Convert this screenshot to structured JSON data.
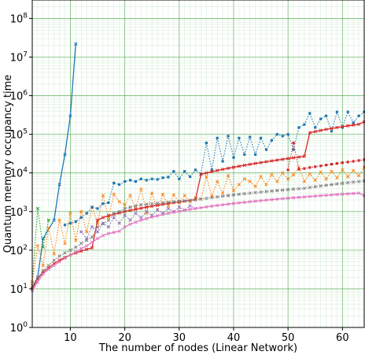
{
  "chart_data": {
    "type": "line",
    "title": "",
    "xlabel": "The number of nodes (Linear Network)",
    "ylabel": "Quantum memory occupancy time",
    "xlim": [
      3,
      64
    ],
    "ylim": [
      1,
      300000000
    ],
    "yscale": "log",
    "grid": "major and minor, green",
    "xticks": [
      10,
      20,
      30,
      40,
      50,
      60
    ],
    "xtick_labels": [
      "10",
      "20",
      "30",
      "40",
      "50",
      "60"
    ],
    "yticks": [
      1,
      10,
      100,
      1000,
      10000,
      100000,
      1000000,
      10000000,
      100000000
    ],
    "ytick_labels": [
      "10^0",
      "10^1",
      "10^2",
      "10^3",
      "10^4",
      "10^5",
      "10^6",
      "10^7",
      "10^8"
    ],
    "series": [
      {
        "color": "#1f77b4",
        "style": "solid",
        "marker": "x",
        "x": [
          3,
          4,
          5,
          7,
          8,
          9,
          10,
          11
        ],
        "y": [
          10,
          20,
          200,
          600,
          5000,
          30000,
          300000,
          22000000
        ]
      },
      {
        "color": "#2ca02c",
        "style": "dotted",
        "marker": "x",
        "x": [
          3,
          4,
          5,
          6
        ],
        "y": [
          15,
          1200,
          120,
          600
        ]
      },
      {
        "color": "#ff7f0e",
        "style": "dotted",
        "marker": "x",
        "x": [
          3,
          4,
          5,
          6,
          7,
          8,
          9,
          10,
          11,
          12,
          13,
          14,
          15,
          16,
          17,
          18,
          19,
          20,
          21,
          22,
          23,
          24,
          25,
          26,
          27,
          28,
          29,
          30,
          31,
          32,
          33,
          34,
          35,
          36,
          37,
          38,
          39,
          40,
          41,
          42,
          43,
          44,
          45,
          46,
          47,
          48,
          49,
          50,
          51,
          52,
          53,
          54,
          55,
          56,
          57,
          58,
          59,
          60,
          61,
          62,
          63,
          64
        ],
        "y": [
          15,
          130,
          40,
          380,
          80,
          600,
          150,
          900,
          180,
          1000,
          300,
          1300,
          500,
          2600,
          700,
          2800,
          1800,
          1500,
          2600,
          1200,
          3800,
          900,
          3000,
          1100,
          2800,
          1400,
          2700,
          1700,
          2600,
          1800,
          2300,
          2100,
          8000,
          2500,
          6000,
          3000,
          8500,
          3500,
          5000,
          7000,
          6000,
          4500,
          8000,
          5000,
          9000,
          6000,
          10000,
          7000,
          9000,
          14000,
          6000,
          9500,
          6500,
          10500,
          7000,
          11000,
          7500,
          12000,
          8000,
          11500,
          8500,
          14000
        ]
      },
      {
        "color": "#1f77b4",
        "style": "dotted",
        "marker": "s",
        "x": [
          9,
          10,
          11,
          12,
          13,
          14,
          15,
          16,
          17,
          18,
          19,
          20,
          21,
          22,
          23,
          24,
          25,
          26,
          27,
          28,
          29,
          30,
          31,
          32,
          33,
          34,
          35,
          36,
          37,
          38,
          39,
          40,
          41,
          42,
          43,
          44,
          45,
          46,
          47,
          48,
          49,
          50,
          51,
          52,
          53,
          54,
          55,
          56,
          57,
          58,
          59,
          60,
          61,
          62,
          63,
          64
        ],
        "y": [
          450,
          500,
          550,
          700,
          900,
          1300,
          1200,
          1600,
          1700,
          5500,
          5000,
          6000,
          6500,
          6000,
          7000,
          6500,
          7000,
          6800,
          7500,
          7800,
          11000,
          7000,
          11000,
          8000,
          12000,
          9500,
          60000,
          12000,
          80000,
          20000,
          90000,
          25000,
          80000,
          30000,
          85000,
          30000,
          80000,
          40000,
          70000,
          100000,
          90000,
          100000,
          40000,
          150000,
          180000,
          350000,
          150000,
          250000,
          300000,
          120000,
          380000,
          150000,
          380000,
          200000,
          300000,
          380000
        ]
      },
      {
        "color": "#d62728",
        "style": "solid",
        "marker": "x",
        "x": [
          3,
          4,
          5,
          6,
          7,
          8,
          9,
          10,
          11,
          12,
          13,
          14,
          15,
          16,
          17,
          18,
          19,
          20,
          21,
          22,
          23,
          24,
          25,
          26,
          27,
          28,
          29,
          30,
          31,
          32,
          33,
          34,
          35,
          36,
          37,
          38,
          39,
          40,
          41,
          42,
          43,
          44,
          45,
          46,
          47,
          48,
          49,
          50,
          51,
          52,
          53,
          54,
          55,
          56,
          57,
          58,
          59,
          60,
          61,
          62,
          63,
          64
        ],
        "y": [
          10,
          18,
          27,
          35,
          45,
          55,
          65,
          75,
          85,
          95,
          105,
          115,
          600,
          700,
          780,
          850,
          920,
          1000,
          1070,
          1140,
          1220,
          1300,
          1380,
          1460,
          1540,
          1620,
          1700,
          1780,
          1860,
          1950,
          2040,
          9200,
          10000,
          10800,
          11600,
          12400,
          13200,
          14000,
          14900,
          15800,
          16700,
          17600,
          18500,
          19500,
          20500,
          21500,
          22500,
          23600,
          24700,
          25800,
          27000,
          110000,
          118000,
          126000,
          134000,
          142000,
          150000,
          158000,
          166000,
          174000,
          182000,
          210000
        ]
      },
      {
        "color": "#d62728",
        "style": "dotted",
        "marker": "s",
        "x": [
          50,
          51,
          52,
          53,
          54,
          55,
          56,
          57,
          58,
          59,
          60,
          61,
          62,
          63,
          64
        ],
        "y": [
          12000,
          60000,
          12500,
          13000,
          13800,
          14500,
          15200,
          16000,
          16800,
          17600,
          18400,
          19200,
          20000,
          21000,
          22000
        ]
      },
      {
        "color": "#7f7f7f",
        "style": "dotted",
        "marker": "x",
        "x": [
          3,
          4,
          5,
          6,
          7,
          8,
          9,
          10,
          11,
          12,
          13,
          14,
          15,
          16,
          17,
          18,
          19,
          20,
          21,
          22,
          23,
          24,
          25,
          26,
          27,
          28,
          29,
          30,
          31,
          32,
          33,
          34,
          35,
          36,
          37,
          38,
          39,
          40,
          41,
          42,
          43,
          44,
          45,
          46,
          47,
          48,
          49,
          50,
          51,
          52,
          53,
          54,
          55,
          56,
          57,
          58,
          59,
          60,
          61,
          62,
          63,
          64
        ],
        "y": [
          12,
          20,
          30,
          40,
          55,
          70,
          85,
          100,
          120,
          150,
          180,
          220,
          400,
          480,
          600,
          900,
          1000,
          1200,
          1300,
          1400,
          1500,
          1550,
          1600,
          1650,
          1700,
          1750,
          1800,
          1850,
          1900,
          1950,
          2000,
          2100,
          2200,
          2300,
          2400,
          2500,
          2600,
          2700,
          2800,
          2900,
          3000,
          3100,
          3200,
          3300,
          3400,
          3500,
          3600,
          3700,
          3800,
          3900,
          4000,
          4200,
          4400,
          4600,
          4800,
          5000,
          5200,
          5400,
          5600,
          5800,
          6000,
          6200
        ]
      },
      {
        "color": "#9467bd",
        "style": "dotted",
        "marker": "x",
        "x": [
          12,
          13,
          14,
          15,
          16,
          17,
          18,
          19,
          20,
          21,
          22,
          23,
          24,
          25,
          26,
          27,
          28,
          29,
          30,
          31,
          32,
          33
        ],
        "y": [
          300,
          200,
          400,
          300,
          500,
          400,
          700,
          500,
          800,
          600,
          900,
          700,
          1000,
          800,
          1100,
          900,
          1200,
          1000,
          1300,
          1100,
          1400,
          1200
        ]
      },
      {
        "color": "#e377c2",
        "style": "solid",
        "marker": "x",
        "x": [
          3,
          4,
          5,
          6,
          7,
          8,
          9,
          10,
          11,
          12,
          13,
          14,
          15,
          16,
          17,
          18,
          19,
          20,
          21,
          22,
          23,
          24,
          25,
          26,
          27,
          28,
          29,
          30,
          31,
          32,
          33,
          34,
          35,
          36,
          37,
          38,
          39,
          40,
          41,
          42,
          43,
          44,
          45,
          46,
          47,
          48,
          49,
          50,
          51,
          52,
          53,
          54,
          55,
          56,
          57,
          58,
          59,
          60,
          61,
          62,
          63,
          64
        ],
        "y": [
          9,
          15,
          24,
          32,
          40,
          50,
          62,
          75,
          90,
          110,
          130,
          160,
          200,
          240,
          270,
          290,
          310,
          400,
          470,
          530,
          600,
          660,
          720,
          780,
          840,
          900,
          960,
          1020,
          1080,
          1140,
          1200,
          1260,
          1320,
          1380,
          1440,
          1500,
          1560,
          1620,
          1680,
          1740,
          1800,
          1860,
          1920,
          1980,
          2040,
          2100,
          2160,
          2220,
          2280,
          2340,
          2400,
          2460,
          2520,
          2580,
          2640,
          2700,
          2760,
          2820,
          2880,
          2940,
          3000,
          2600
        ]
      }
    ]
  }
}
